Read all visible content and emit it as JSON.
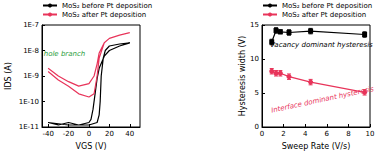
{
  "chart_data": [
    {
      "type": "line",
      "x_label": "VGS (V)",
      "y_label": "IDS (A)",
      "log": "y",
      "xlim": [
        -46,
        50
      ],
      "xticks": [
        -40,
        -20,
        0,
        20,
        40
      ],
      "ylim": [
        1e-11,
        1e-07
      ],
      "yticks": [
        {
          "value": 1e-11,
          "label": "1E-11"
        },
        {
          "value": 1e-10,
          "label": "1E-10"
        },
        {
          "value": 1e-09,
          "label": "1E-9"
        },
        {
          "value": 1e-08,
          "label": "1E-8"
        },
        {
          "value": 1e-07,
          "label": "1E-7"
        }
      ],
      "legend": "top",
      "annotations": [
        {
          "text": "hole branch",
          "color": "#2e9e3e"
        }
      ],
      "series": [
        {
          "name": "MoS₂ before Pt deposition",
          "color": "#000000",
          "x": [
            -40,
            -30,
            -20,
            -10,
            0,
            2,
            4,
            6,
            8,
            10,
            15,
            20,
            30,
            40,
            30,
            20,
            16,
            14,
            12,
            11,
            10,
            8,
            0,
            -20,
            -40
          ],
          "values": [
            1.5e-11,
            1.2e-11,
            1.5e-11,
            1.2e-11,
            1.5e-11,
            2e-11,
            5e-11,
            2e-10,
            8e-10,
            2e-09,
            6e-09,
            1e-08,
            1.5e-08,
            2e-08,
            1.8e-08,
            1.5e-08,
            1e-08,
            5e-09,
            1e-09,
            1e-10,
            3e-11,
            1.5e-11,
            1.2e-11,
            1.2e-11,
            1.5e-11
          ]
        },
        {
          "name": "MoS₂ after Pt deposition",
          "color": "#e8345a",
          "x": [
            -40,
            -30,
            -20,
            -10,
            0,
            5,
            8,
            10,
            15,
            20,
            30,
            40,
            30,
            20,
            15,
            10,
            8,
            5,
            0,
            -10,
            -20,
            -30,
            -40
          ],
          "values": [
            1.5e-09,
            7e-10,
            4e-10,
            2e-10,
            1.5e-10,
            2e-10,
            1e-09,
            5e-09,
            2e-08,
            3e-08,
            4e-08,
            5e-08,
            4e-08,
            3e-08,
            2e-08,
            8e-09,
            3e-09,
            1e-09,
            5e-10,
            4e-10,
            6e-10,
            1e-09,
            2e-09
          ]
        }
      ]
    },
    {
      "type": "line",
      "x_label": "Sweep Rate (V/s)",
      "y_label": "Hysteresis width (V)",
      "xlim": [
        0,
        10
      ],
      "xticks": [
        0,
        2,
        4,
        6,
        8,
        10
      ],
      "ylim": [
        0,
        15
      ],
      "yticks": [
        0,
        5,
        10,
        15
      ],
      "legend": "top",
      "annotations": [
        {
          "text": "Vacancy dominant hysteresis",
          "color": "#000000"
        },
        {
          "text": "Interface dominant hysteresis",
          "color": "#e8345a"
        }
      ],
      "series": [
        {
          "name": "MoS₂ before Pt deposition",
          "color": "#000000",
          "marker": "square",
          "x": [
            0.9,
            1.3,
            1.7,
            2.5,
            4.5,
            9.5
          ],
          "values": [
            12.5,
            14.2,
            14.0,
            13.9,
            14.1,
            13.6
          ],
          "errors": [
            0.4,
            0.4,
            0.3,
            0.4,
            0.4,
            0.4
          ]
        },
        {
          "name": "MoS₂ after Pt deposition",
          "color": "#e8345a",
          "marker": "circle",
          "x": [
            0.9,
            1.3,
            1.7,
            2.5,
            4.5,
            9.5
          ],
          "values": [
            8.2,
            7.9,
            7.9,
            7.4,
            6.6,
            5.1
          ],
          "errors": [
            0.4,
            0.4,
            0.4,
            0.4,
            0.4,
            0.4
          ]
        }
      ]
    }
  ]
}
